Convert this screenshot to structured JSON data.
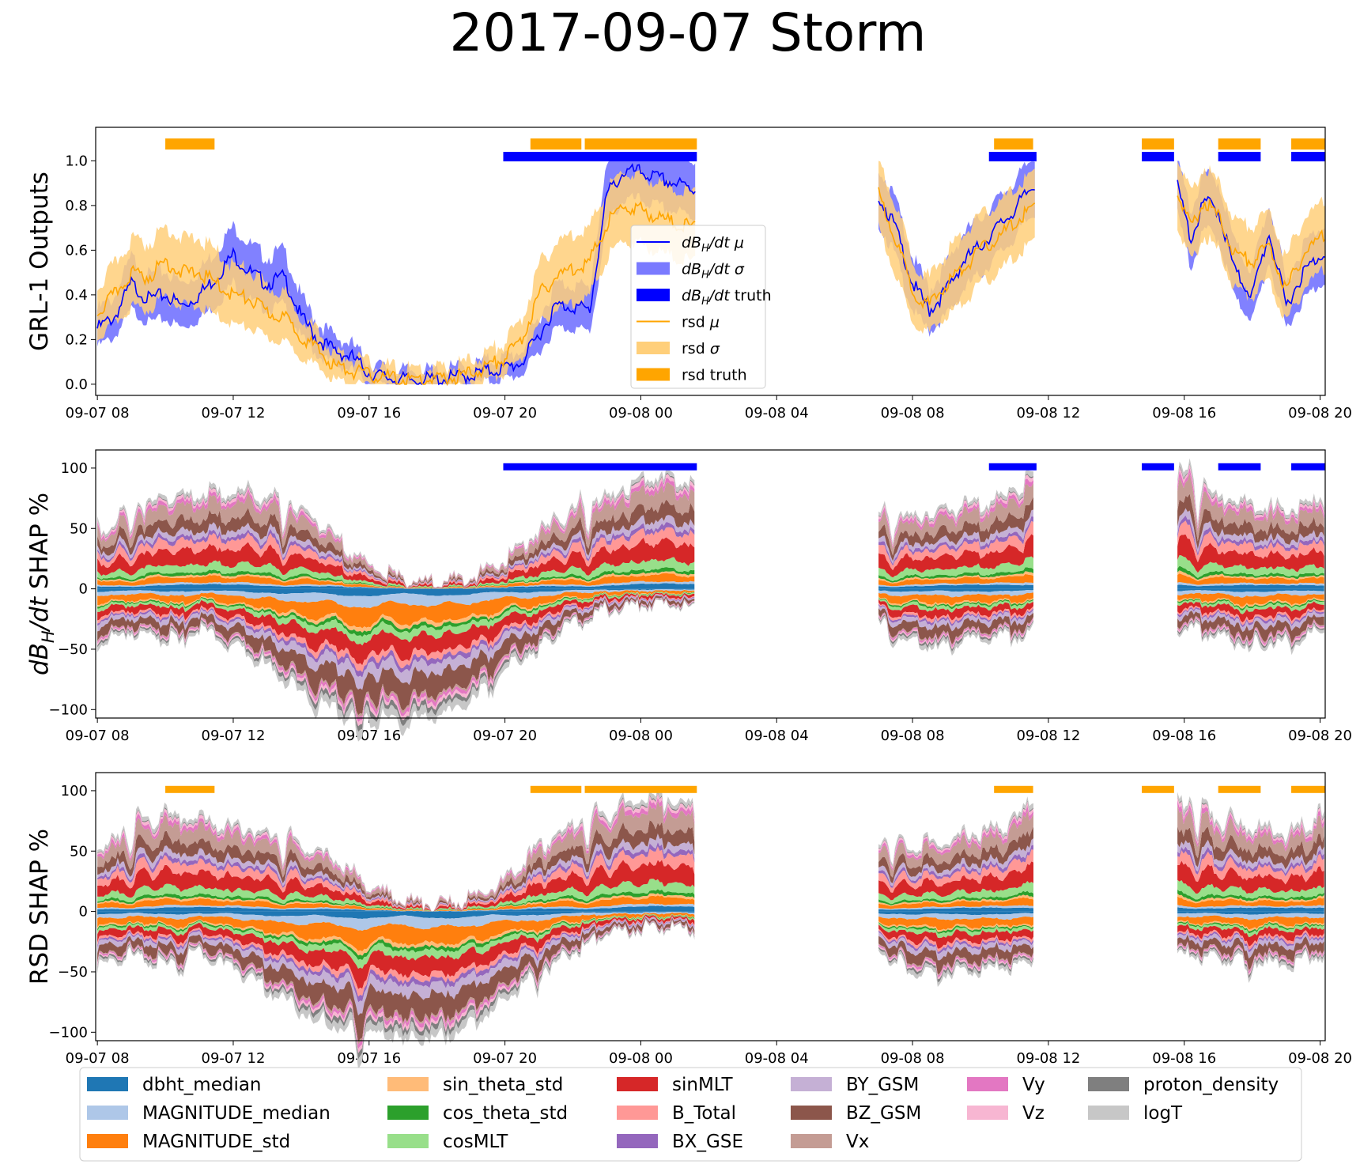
{
  "figure": {
    "title": "2017-09-07 Storm"
  },
  "x_axis": {
    "start_hours": 7.95,
    "end_hours": 44.15,
    "tick_hours": [
      8,
      12,
      16,
      20,
      24,
      28,
      32,
      36,
      40,
      44
    ],
    "tick_labels": [
      "09-07 08",
      "09-07 12",
      "09-07 16",
      "09-07 20",
      "09-08 00",
      "09-08 04",
      "09-08 08",
      "09-08 12",
      "09-08 16",
      "09-08 20"
    ]
  },
  "colors": {
    "mu_blue": "#0000ff",
    "sigma_blue": "#7a7aff",
    "truth_blue": "#0000ff",
    "rsd_orange": "#ffa500",
    "sigma_orange": "#ffcf7a"
  },
  "chart_data": [
    {
      "type": "line",
      "ylabel": "GRL-1 Outputs",
      "ylim": [
        -0.05,
        1.15
      ],
      "yticks": [
        0.0,
        0.2,
        0.4,
        0.6,
        0.8,
        1.0
      ],
      "ytick_labels": [
        "0.0",
        "0.2",
        "0.4",
        "0.6",
        "0.8",
        "1.0"
      ],
      "legend_position": "center",
      "legend": [
        {
          "label": "dB_H/dt μ",
          "kind": "line"
        },
        {
          "label": "dB_H/dt σ",
          "kind": "patch"
        },
        {
          "label": "dB_H/dt truth",
          "kind": "bar"
        },
        {
          "label": "rsd μ",
          "kind": "line"
        },
        {
          "label": "rsd σ",
          "kind": "patch"
        },
        {
          "label": "rsd truth",
          "kind": "bar"
        }
      ],
      "segments": [
        {
          "start": 8.0,
          "end": 25.6
        },
        {
          "start": 31.0,
          "end": 35.6
        },
        {
          "start": 39.8,
          "end": 44.15
        }
      ],
      "series": [
        {
          "name": "dB_H/dt μ",
          "x": [
            8.0,
            8.5,
            9.0,
            9.5,
            10.0,
            10.5,
            11.0,
            11.5,
            12.0,
            12.5,
            13.0,
            13.5,
            14.0,
            14.5,
            15.0,
            15.5,
            16.0,
            16.5,
            17.0,
            17.5,
            18.0,
            18.5,
            19.0,
            19.5,
            20.0,
            20.5,
            21.0,
            21.5,
            22.0,
            22.5,
            23.0,
            23.5,
            24.0,
            24.5,
            25.0,
            25.6,
            31.0,
            31.5,
            32.0,
            32.5,
            33.0,
            33.5,
            34.0,
            34.5,
            35.0,
            35.6,
            39.8,
            40.2,
            40.6,
            41.0,
            41.5,
            42.0,
            42.5,
            43.0,
            43.5,
            44.15
          ],
          "y": [
            0.25,
            0.3,
            0.45,
            0.38,
            0.4,
            0.35,
            0.4,
            0.48,
            0.58,
            0.5,
            0.45,
            0.48,
            0.3,
            0.2,
            0.15,
            0.12,
            0.05,
            0.03,
            0.02,
            0.02,
            0.02,
            0.03,
            0.04,
            0.06,
            0.07,
            0.1,
            0.22,
            0.35,
            0.35,
            0.33,
            0.85,
            0.95,
            0.95,
            0.92,
            0.9,
            0.87,
            0.85,
            0.7,
            0.45,
            0.33,
            0.42,
            0.55,
            0.62,
            0.7,
            0.78,
            0.9,
            0.88,
            0.65,
            0.82,
            0.78,
            0.5,
            0.4,
            0.68,
            0.35,
            0.5,
            0.6
          ]
        },
        {
          "name": "rsd μ",
          "x": [
            8.0,
            8.5,
            9.0,
            9.5,
            10.0,
            10.5,
            11.0,
            11.5,
            12.0,
            12.5,
            13.0,
            13.5,
            14.0,
            14.5,
            15.0,
            15.5,
            16.0,
            16.5,
            17.0,
            17.5,
            18.0,
            18.5,
            19.0,
            19.5,
            20.0,
            20.5,
            21.0,
            21.5,
            22.0,
            22.5,
            23.0,
            23.5,
            24.0,
            24.5,
            25.0,
            25.6,
            31.0,
            31.5,
            32.0,
            32.5,
            33.0,
            33.5,
            34.0,
            34.5,
            35.0,
            35.6,
            39.8,
            40.2,
            40.6,
            41.0,
            41.5,
            42.0,
            42.5,
            43.0,
            43.5,
            44.15
          ],
          "y": [
            0.32,
            0.4,
            0.5,
            0.48,
            0.55,
            0.5,
            0.5,
            0.45,
            0.4,
            0.38,
            0.32,
            0.3,
            0.22,
            0.15,
            0.08,
            0.06,
            0.04,
            0.03,
            0.02,
            0.02,
            0.02,
            0.03,
            0.05,
            0.08,
            0.12,
            0.2,
            0.4,
            0.48,
            0.52,
            0.55,
            0.72,
            0.8,
            0.78,
            0.75,
            0.72,
            0.7,
            0.85,
            0.65,
            0.42,
            0.35,
            0.45,
            0.52,
            0.6,
            0.65,
            0.72,
            0.8,
            0.85,
            0.7,
            0.82,
            0.75,
            0.58,
            0.55,
            0.62,
            0.42,
            0.58,
            0.68
          ]
        }
      ],
      "truth_bars": {
        "dB_H/dt truth": [
          [
            19.95,
            25.65
          ],
          [
            34.25,
            35.65
          ],
          [
            38.75,
            39.7
          ],
          [
            41.0,
            42.25
          ],
          [
            43.15,
            44.15
          ]
        ],
        "rsd truth": [
          [
            10.0,
            11.45
          ],
          [
            20.75,
            22.25
          ],
          [
            22.35,
            25.65
          ],
          [
            34.4,
            35.55
          ],
          [
            38.75,
            39.7
          ],
          [
            41.0,
            42.25
          ],
          [
            43.15,
            44.15
          ]
        ]
      }
    },
    {
      "type": "area",
      "ylabel": "dB_H/dt SHAP %",
      "ylim": [
        -107,
        115
      ],
      "yticks": [
        -100,
        -50,
        0,
        50,
        100
      ],
      "ytick_labels": [
        "−100",
        "−50",
        "0",
        "50",
        "100"
      ],
      "truth_bars": [
        [
          19.95,
          25.65
        ],
        [
          34.25,
          35.65
        ],
        [
          38.75,
          39.7
        ],
        [
          41.0,
          42.25
        ],
        [
          43.15,
          44.15
        ]
      ],
      "x": [
        8.0,
        9.0,
        10.0,
        11.0,
        12.0,
        13.0,
        14.0,
        15.0,
        16.0,
        17.0,
        18.0,
        19.0,
        20.0,
        21.0,
        22.0,
        23.0,
        24.0,
        25.0,
        25.6,
        31.0,
        32.0,
        33.0,
        34.0,
        35.0,
        35.6,
        39.8,
        40.5,
        41.0,
        42.0,
        43.0,
        44.15
      ],
      "positive_top": [
        45,
        60,
        70,
        72,
        75,
        70,
        60,
        40,
        18,
        8,
        5,
        10,
        22,
        45,
        60,
        70,
        85,
        85,
        80,
        55,
        55,
        60,
        65,
        75,
        90,
        90,
        80,
        70,
        65,
        60,
        70
      ],
      "negative_bottom": [
        -40,
        -30,
        -38,
        -30,
        -40,
        -55,
        -75,
        -90,
        -95,
        -95,
        -90,
        -80,
        -60,
        -40,
        -25,
        -15,
        -12,
        -12,
        -15,
        -25,
        -40,
        -42,
        -35,
        -35,
        -30,
        -30,
        -30,
        -35,
        -40,
        -40,
        -30
      ]
    },
    {
      "type": "area",
      "ylabel": "RSD SHAP %",
      "ylim": [
        -107,
        115
      ],
      "yticks": [
        -100,
        -50,
        0,
        50,
        100
      ],
      "ytick_labels": [
        "−100",
        "−50",
        "0",
        "50",
        "100"
      ],
      "truth_bars": [
        [
          10.0,
          11.45
        ],
        [
          20.75,
          22.25
        ],
        [
          22.35,
          25.65
        ],
        [
          34.4,
          35.55
        ],
        [
          38.75,
          39.7
        ],
        [
          41.0,
          42.25
        ],
        [
          43.15,
          44.15
        ]
      ],
      "x": [
        8.0,
        9.0,
        10.0,
        11.0,
        12.0,
        13.0,
        14.0,
        15.0,
        16.0,
        17.0,
        18.0,
        19.0,
        20.0,
        21.0,
        22.0,
        23.0,
        24.0,
        25.0,
        25.6,
        31.0,
        32.0,
        33.0,
        34.0,
        35.0,
        35.6,
        39.8,
        40.5,
        41.0,
        42.0,
        43.0,
        44.15
      ],
      "positive_top": [
        45,
        65,
        75,
        70,
        65,
        60,
        52,
        40,
        20,
        10,
        5,
        10,
        25,
        50,
        65,
        75,
        88,
        85,
        80,
        55,
        50,
        55,
        60,
        70,
        90,
        85,
        80,
        70,
        65,
        60,
        75
      ],
      "negative_bottom": [
        -40,
        -30,
        -40,
        -30,
        -40,
        -55,
        -70,
        -85,
        -90,
        -90,
        -90,
        -80,
        -65,
        -45,
        -30,
        -15,
        -12,
        -12,
        -15,
        -25,
        -45,
        -45,
        -40,
        -40,
        -35,
        -30,
        -32,
        -35,
        -38,
        -38,
        -30
      ]
    }
  ],
  "shap_legend": {
    "features": [
      "dbht_median",
      "MAGNITUDE_median",
      "MAGNITUDE_std",
      "sin_theta_std",
      "cos_theta_std",
      "cosMLT",
      "sinMLT",
      "B_Total",
      "BX_GSE",
      "BY_GSM",
      "BZ_GSM",
      "Vx",
      "Vy",
      "Vz",
      "proton_density",
      "logT"
    ],
    "colors": [
      "#1f77b4",
      "#aec7e8",
      "#ff7f0e",
      "#ffbb78",
      "#2ca02c",
      "#98df8a",
      "#d62728",
      "#ff9896",
      "#9467bd",
      "#c5b0d5",
      "#8c564b",
      "#c49c94",
      "#e377c2",
      "#f7b6d2",
      "#7f7f7f",
      "#c7c7c7"
    ]
  }
}
